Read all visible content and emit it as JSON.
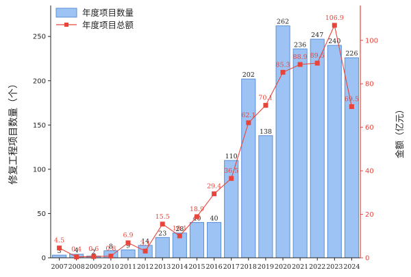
{
  "chart_data": {
    "type": "bar",
    "categories": [
      "2007",
      "2008",
      "2009",
      "2010",
      "2011",
      "2012",
      "2013",
      "2014",
      "2015",
      "2016",
      "2017",
      "2018",
      "2019",
      "2020",
      "2021",
      "2022",
      "2023",
      "2024"
    ],
    "series": [
      {
        "name": "年度项目数量",
        "type": "bar",
        "axis": "left",
        "color": "#9cc3f3",
        "values": [
          3,
          4,
          2,
          8,
          9,
          14,
          23,
          28,
          40,
          40,
          110,
          202,
          138,
          262,
          236,
          247,
          240,
          226
        ],
        "labels": [
          "3",
          "4",
          "2",
          "8",
          "9",
          "14",
          "23",
          "28",
          "40",
          "40",
          "110",
          "202",
          "138",
          "262",
          "236",
          "247",
          "240",
          "226"
        ]
      },
      {
        "name": "年度项目总额",
        "type": "line",
        "axis": "right",
        "color": "#e8443a",
        "values": [
          4.5,
          0.4,
          0.6,
          0.8,
          6.9,
          3.1,
          15.5,
          10.1,
          18.9,
          29.4,
          36.5,
          62.1,
          70.1,
          85.3,
          88.9,
          89.5,
          106.9,
          69.5
        ],
        "labels": [
          "4.5",
          "0.4",
          "0.6",
          "0.8",
          "6.9",
          "3.1",
          "15.5",
          "10.1",
          "18.9",
          "29.4",
          "36.5",
          "62.1",
          "70.1",
          "85.3",
          "88.9",
          "89.5",
          "106.9",
          "69.5"
        ]
      }
    ],
    "ylabel": "修复工程项目数量（个）",
    "ylabel_right": "金额（亿元）",
    "xlabel": "",
    "ylim": [
      0,
      285
    ],
    "ylim_right": [
      0,
      116
    ],
    "yticks": [
      0,
      50,
      100,
      150,
      200,
      250
    ],
    "yticks_right": [
      0,
      20,
      40,
      60,
      80,
      100
    ],
    "legend": "top-left",
    "grid": false
  }
}
